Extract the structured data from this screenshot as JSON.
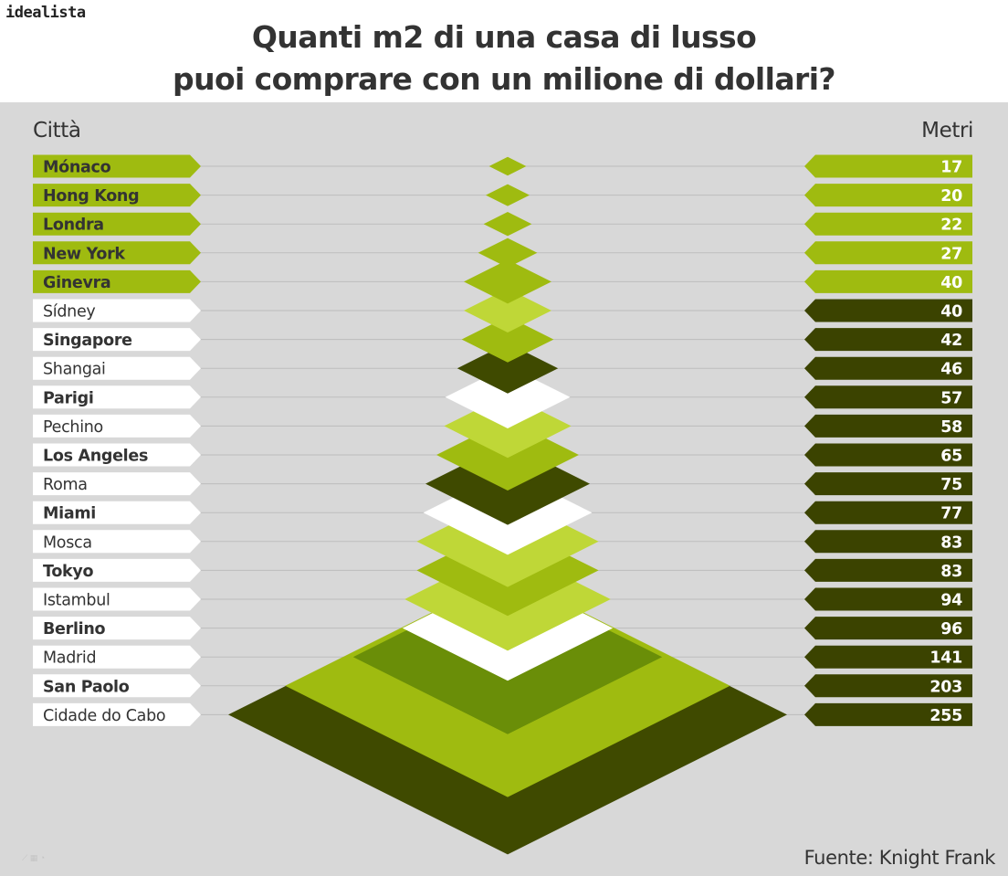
{
  "brand": {
    "logo_text": "idealista"
  },
  "title": {
    "line1": "Quanti m2 di una casa di lusso",
    "line2": "puoi comprare con un milione di dollari?"
  },
  "columns": {
    "left": "Città",
    "right": "Metri"
  },
  "source": "Fuente: Knight Frank",
  "colors": {
    "background": "#d8d8d8",
    "highlight_green": "#9fbb10",
    "dark_olive": "#3b4300",
    "white": "#ffffff",
    "separator": "#bdbdbd"
  },
  "chart_data": {
    "type": "pyramid",
    "title": "Quanti m2 di una casa di lusso puoi comprare con un milione di dollari?",
    "categories": [
      "Mónaco",
      "Hong Kong",
      "Londra",
      "New York",
      "Ginevra",
      "Sídney",
      "Singapore",
      "Shangai",
      "Parigi",
      "Pechino",
      "Los Angeles",
      "Roma",
      "Miami",
      "Mosca",
      "Tokyo",
      "Istambul",
      "Berlino",
      "Madrid",
      "San Paolo",
      "Cidade do Cabo"
    ],
    "values": [
      17,
      20,
      22,
      27,
      40,
      40,
      42,
      46,
      57,
      58,
      65,
      75,
      77,
      83,
      83,
      94,
      96,
      141,
      203,
      255
    ],
    "value_labels": [
      "17",
      "20",
      "22",
      "27",
      "40",
      "40",
      "42",
      "46",
      "57",
      "58",
      "65",
      "75",
      "77",
      "83",
      "83",
      "94",
      "96",
      "141",
      "203",
      "255"
    ],
    "highlighted": [
      true,
      true,
      true,
      true,
      true,
      false,
      false,
      false,
      false,
      false,
      false,
      false,
      false,
      false,
      false,
      false,
      false,
      false,
      false,
      false
    ],
    "diamond_colors": [
      "#9fbb10",
      "#9fbb10",
      "#9fbb10",
      "#9fbb10",
      "#9fbb10",
      "#bfd737",
      "#9fbb10",
      "#3f4a00",
      "#ffffff",
      "#bfd737",
      "#9fbb10",
      "#3f4a00",
      "#ffffff",
      "#bfd737",
      "#9fbb10",
      "#bfd737",
      "#ffffff",
      "#6a8e08",
      "#9fbb10",
      "#3f4a00"
    ],
    "unit": "m2",
    "legend": "none",
    "grid": false
  }
}
